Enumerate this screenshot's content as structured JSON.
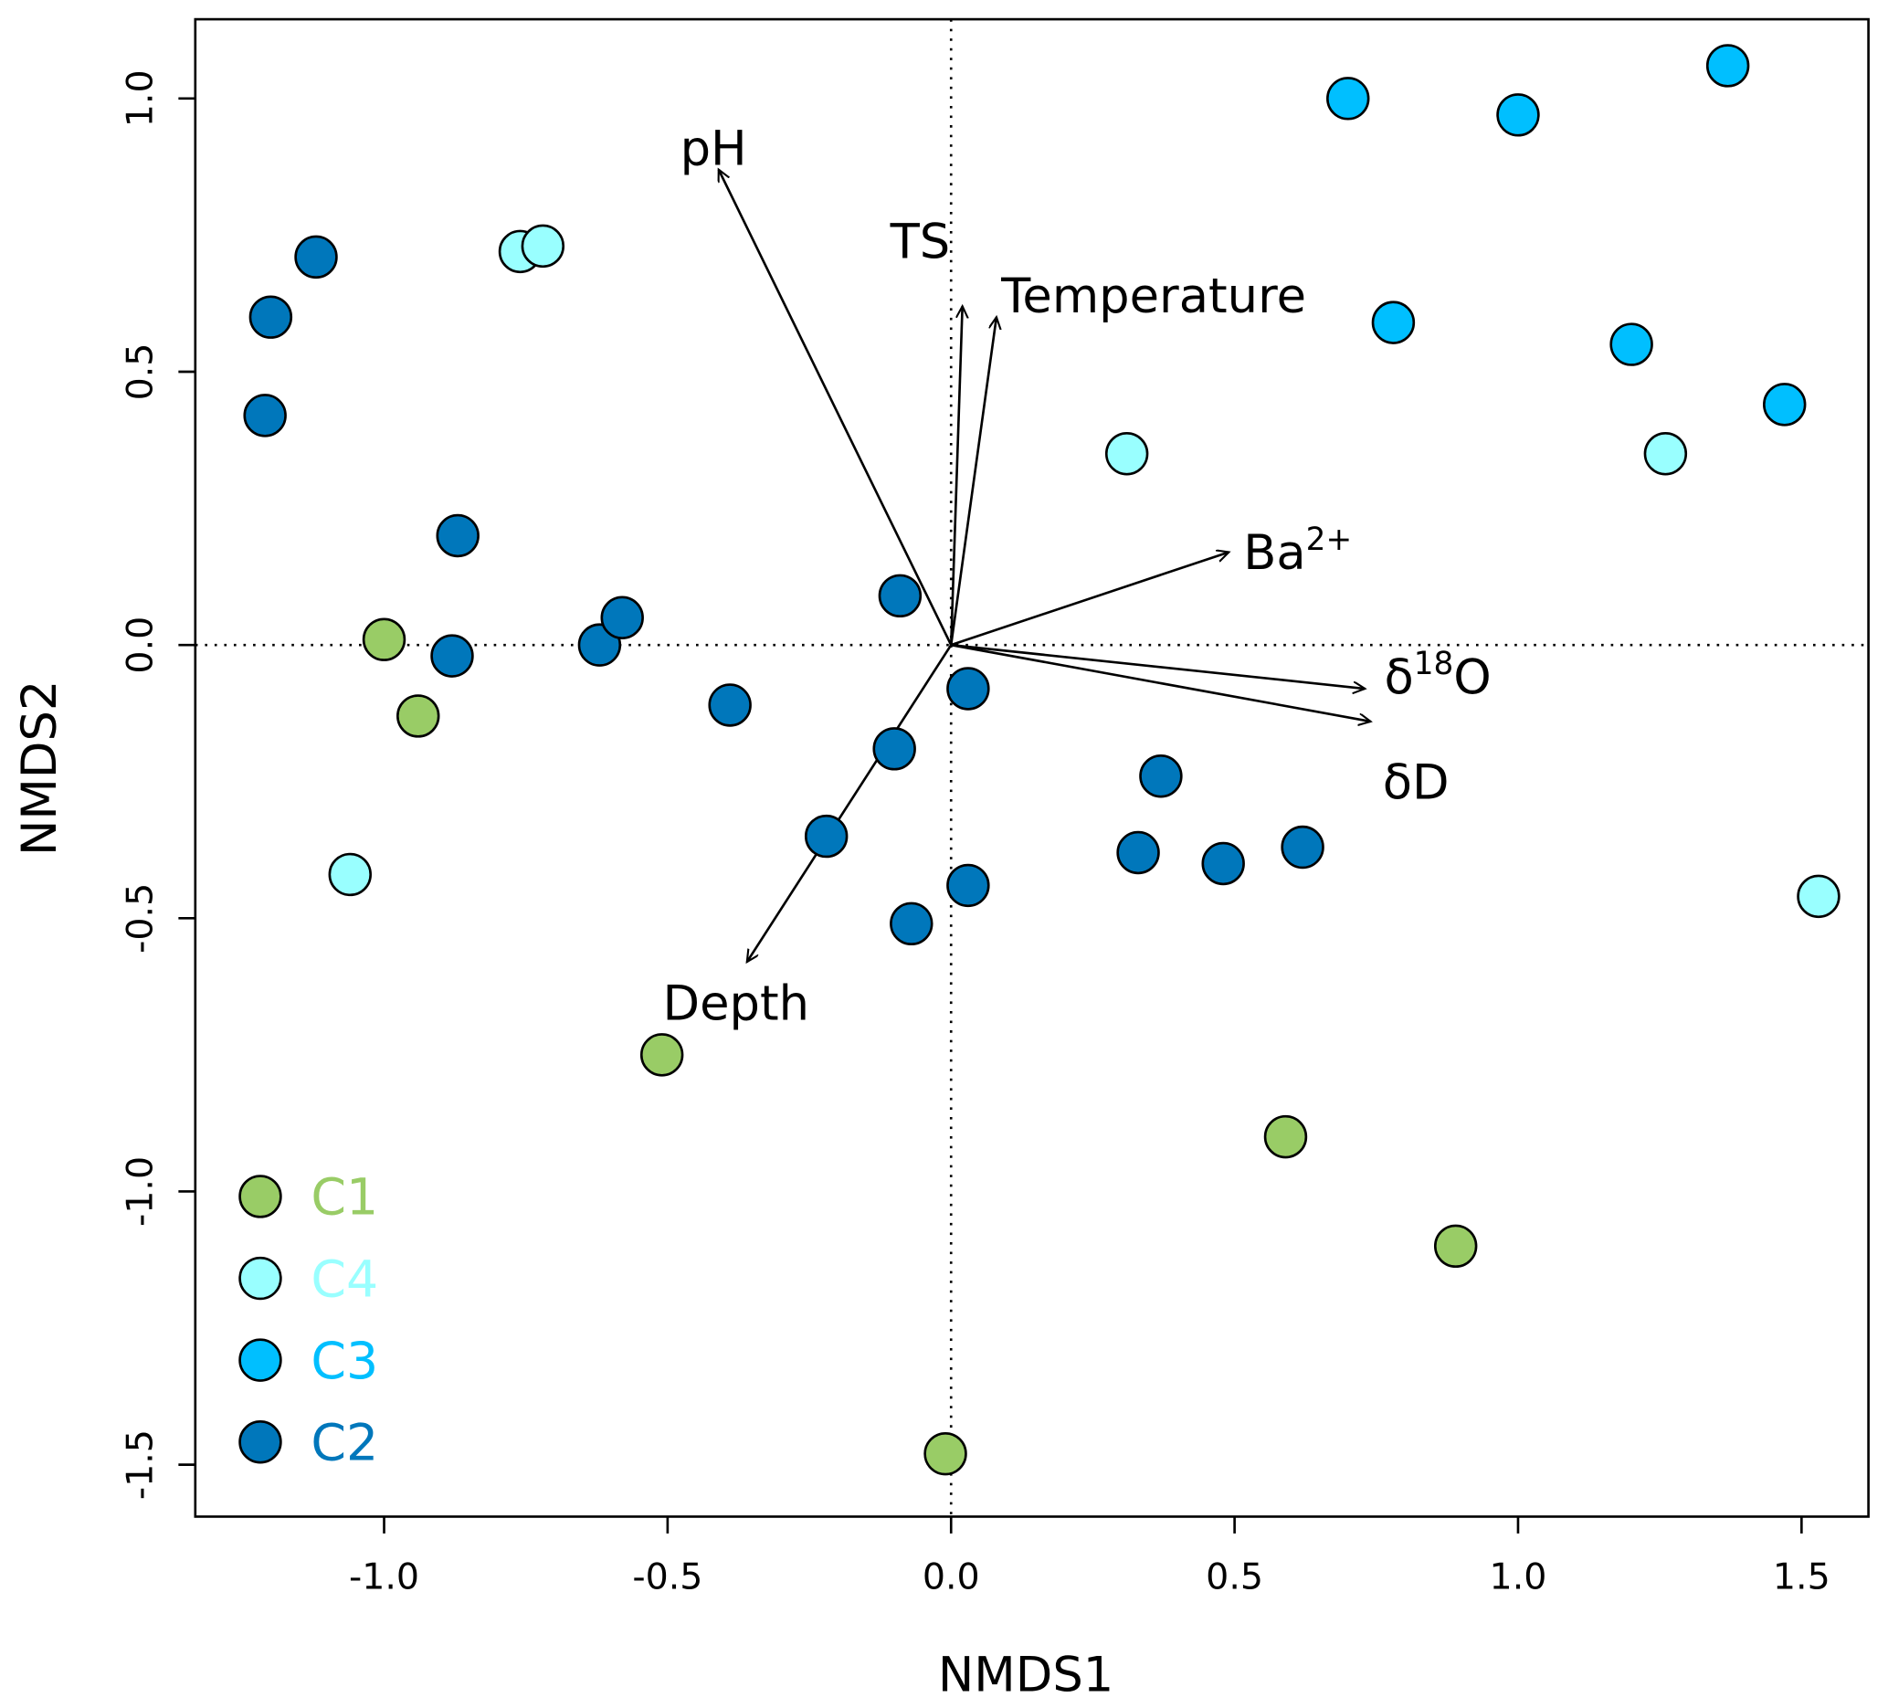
{
  "chart_data": {
    "type": "scatter",
    "title": "",
    "xlabel": "NMDS1",
    "ylabel": "NMDS2",
    "xlim": [
      -1.333,
      1.618
    ],
    "ylim": [
      -1.595,
      1.145
    ],
    "xticks": [
      -1.0,
      -0.5,
      0.0,
      0.5,
      1.0,
      1.5
    ],
    "xtick_labels": [
      "-1.0",
      "-0.5",
      "0.0",
      "0.5",
      "1.0",
      "1.5"
    ],
    "yticks": [
      -1.5,
      -1.0,
      -0.5,
      0.0,
      0.5,
      1.0
    ],
    "ytick_labels": [
      "-1.5",
      "-1.0",
      "-0.5",
      "0.0",
      "0.5",
      "1.0"
    ],
    "grid": false,
    "reference_lines": {
      "x": 0,
      "y": 0,
      "style": "dotted"
    },
    "legend_position": "bottom-left",
    "series": [
      {
        "name": "C1",
        "color": "#99CC66",
        "points": [
          [
            -1.0,
            0.01
          ],
          [
            -0.94,
            -0.13
          ],
          [
            -0.51,
            -0.75
          ],
          [
            0.59,
            -0.9
          ],
          [
            0.89,
            -1.1
          ],
          [
            -0.01,
            -1.48
          ]
        ]
      },
      {
        "name": "C4",
        "color": "#99FFFF",
        "points": [
          [
            -0.76,
            0.72
          ],
          [
            -0.72,
            0.73
          ],
          [
            0.31,
            0.35
          ],
          [
            1.26,
            0.35
          ],
          [
            -1.06,
            -0.42
          ],
          [
            1.53,
            -0.46
          ]
        ]
      },
      {
        "name": "C3",
        "color": "#00BFFF",
        "points": [
          [
            0.7,
            1.0
          ],
          [
            1.0,
            0.97
          ],
          [
            1.37,
            1.06
          ],
          [
            0.78,
            0.59
          ],
          [
            1.2,
            0.55
          ],
          [
            1.47,
            0.44
          ]
        ]
      },
      {
        "name": "C2",
        "color": "#0077BB",
        "points": [
          [
            -1.12,
            0.71
          ],
          [
            -1.2,
            0.6
          ],
          [
            -1.21,
            0.42
          ],
          [
            -0.87,
            0.2
          ],
          [
            -0.88,
            -0.02
          ],
          [
            -0.62,
            0.0
          ],
          [
            -0.58,
            0.05
          ],
          [
            -0.39,
            -0.11
          ],
          [
            -0.09,
            0.09
          ],
          [
            -0.1,
            -0.19
          ],
          [
            -0.22,
            -0.35
          ],
          [
            0.03,
            -0.08
          ],
          [
            0.03,
            -0.44
          ],
          [
            -0.07,
            -0.51
          ],
          [
            0.37,
            -0.24
          ],
          [
            0.33,
            -0.38
          ],
          [
            0.48,
            -0.4
          ],
          [
            0.62,
            -0.37
          ]
        ]
      }
    ],
    "vectors": [
      {
        "id": "ph",
        "label": "pH",
        "sup": "",
        "end": [
          -0.41,
          0.87
        ]
      },
      {
        "id": "ts",
        "label": "TS",
        "sup": "",
        "end": [
          0.02,
          0.62
        ]
      },
      {
        "id": "temperature",
        "label": "Temperature",
        "sup": "",
        "end": [
          0.08,
          0.6
        ]
      },
      {
        "id": "ba",
        "label": "Ba",
        "sup": "2+",
        "end": [
          0.49,
          0.17
        ]
      },
      {
        "id": "d18o",
        "label": "δ",
        "sup": "18",
        "suffix": "O",
        "end": [
          0.73,
          -0.08
        ]
      },
      {
        "id": "dd",
        "label": "δD",
        "sup": "",
        "end": [
          0.74,
          -0.14
        ]
      },
      {
        "id": "depth",
        "label": "Depth",
        "sup": "",
        "end": [
          -0.36,
          -0.58
        ]
      }
    ]
  }
}
